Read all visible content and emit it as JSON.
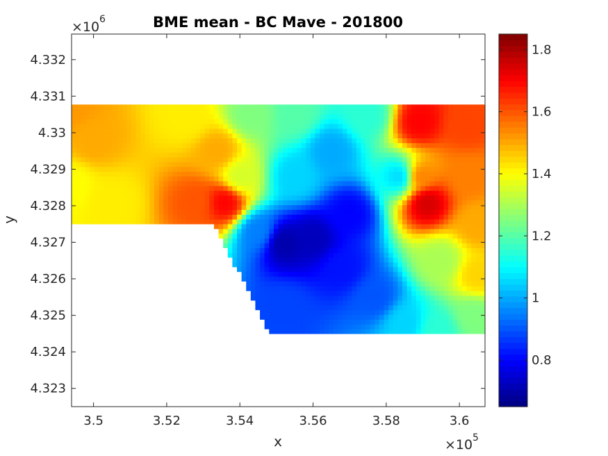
{
  "chart_data": {
    "type": "heatmap",
    "title": "BME mean - BC Mave - 201800",
    "xlabel": "x",
    "ylabel": "y",
    "x_multiplier": {
      "base": "×10",
      "exponent": "5"
    },
    "y_multiplier": {
      "base": "×10",
      "exponent": "6"
    },
    "xlim": [
      349400,
      360700
    ],
    "ylim": [
      4322500,
      4332700
    ],
    "x_ticks": [
      350000,
      352000,
      354000,
      356000,
      358000,
      360000
    ],
    "x_tick_labels": [
      "3.5",
      "3.52",
      "3.54",
      "3.56",
      "3.58",
      "3.6"
    ],
    "y_ticks": [
      4323000,
      4324000,
      4325000,
      4326000,
      4327000,
      4328000,
      4329000,
      4330000,
      4331000,
      4332000
    ],
    "y_tick_labels": [
      "4.323",
      "4.324",
      "4.325",
      "4.326",
      "4.327",
      "4.328",
      "4.329",
      "4.33",
      "4.331",
      "4.332"
    ],
    "colorbar": {
      "colormap": "jet",
      "range": [
        0.65,
        1.85
      ],
      "ticks": [
        0.8,
        1,
        1.2,
        1.4,
        1.6,
        1.8
      ],
      "tick_labels": [
        "0.8",
        "1",
        "1.2",
        "1.4",
        "1.6",
        "1.8"
      ]
    },
    "data_extent": {
      "x": [
        349400,
        360700
      ],
      "y_top": 4330770,
      "y_bottom_left": 4327500,
      "y_bottom_right": 4324500
    },
    "field_anchors": [
      {
        "x": 349400,
        "y": 4330700,
        "value": 1.52
      },
      {
        "x": 350000,
        "y": 4329800,
        "value": 1.5
      },
      {
        "x": 349400,
        "y": 4328600,
        "value": 1.4
      },
      {
        "x": 350500,
        "y": 4328100,
        "value": 1.42
      },
      {
        "x": 352800,
        "y": 4328100,
        "value": 1.6
      },
      {
        "x": 353600,
        "y": 4328100,
        "value": 1.7
      },
      {
        "x": 353400,
        "y": 4329500,
        "value": 1.5
      },
      {
        "x": 352600,
        "y": 4330400,
        "value": 1.42
      },
      {
        "x": 354000,
        "y": 4328800,
        "value": 1.35
      },
      {
        "x": 354300,
        "y": 4330500,
        "value": 1.25
      },
      {
        "x": 355500,
        "y": 4330500,
        "value": 1.2
      },
      {
        "x": 357500,
        "y": 4330500,
        "value": 1.15
      },
      {
        "x": 355500,
        "y": 4328800,
        "value": 1.05
      },
      {
        "x": 356500,
        "y": 4329500,
        "value": 1.0
      },
      {
        "x": 354500,
        "y": 4327300,
        "value": 0.95
      },
      {
        "x": 355200,
        "y": 4327000,
        "value": 0.7
      },
      {
        "x": 356000,
        "y": 4327100,
        "value": 0.72
      },
      {
        "x": 357000,
        "y": 4327800,
        "value": 0.8
      },
      {
        "x": 356800,
        "y": 4326300,
        "value": 0.82
      },
      {
        "x": 355200,
        "y": 4325200,
        "value": 0.88
      },
      {
        "x": 357700,
        "y": 4325500,
        "value": 0.9
      },
      {
        "x": 358500,
        "y": 4324800,
        "value": 1.05
      },
      {
        "x": 358400,
        "y": 4328800,
        "value": 1.05
      },
      {
        "x": 358900,
        "y": 4330300,
        "value": 1.7
      },
      {
        "x": 358900,
        "y": 4328800,
        "value": 1.55
      },
      {
        "x": 359100,
        "y": 4328100,
        "value": 1.75
      },
      {
        "x": 360200,
        "y": 4330200,
        "value": 1.62
      },
      {
        "x": 360300,
        "y": 4328800,
        "value": 1.55
      },
      {
        "x": 360500,
        "y": 4327500,
        "value": 1.5
      },
      {
        "x": 359500,
        "y": 4326500,
        "value": 1.3
      },
      {
        "x": 360500,
        "y": 4326100,
        "value": 1.45
      },
      {
        "x": 360400,
        "y": 4325000,
        "value": 1.25
      },
      {
        "x": 359400,
        "y": 4324600,
        "value": 1.15
      }
    ]
  }
}
